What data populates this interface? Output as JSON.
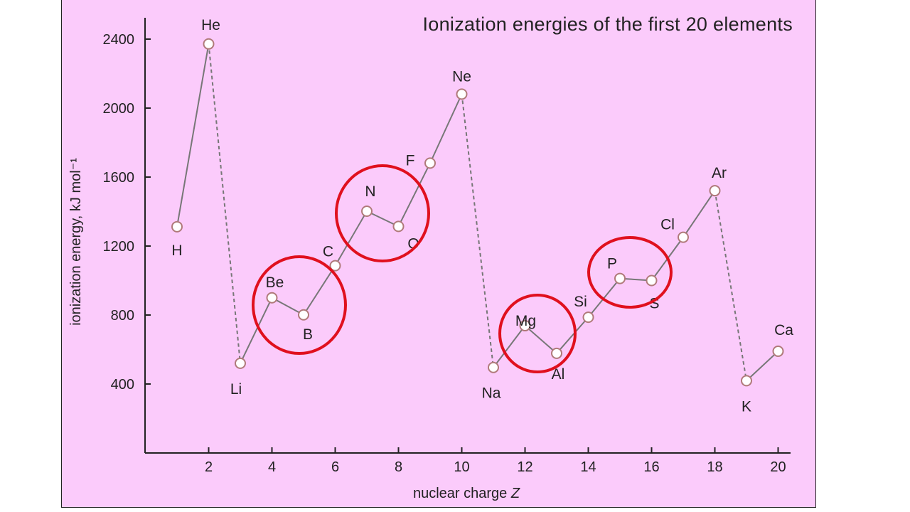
{
  "chart_data": {
    "type": "line",
    "title": "Ionization energies of the first 20 elements",
    "xlabel": "nuclear charge",
    "xlabel_var": "Z",
    "ylabel": "ionization energy, kJ mol⁻¹",
    "xlim": [
      0,
      20.3
    ],
    "ylim": [
      0,
      2500
    ],
    "xticks": [
      2,
      4,
      6,
      8,
      10,
      12,
      14,
      16,
      18,
      20
    ],
    "yticks": [
      400,
      800,
      1200,
      1600,
      2000,
      2400
    ],
    "grid": false,
    "series": [
      {
        "x": [
          1,
          2,
          3,
          4,
          5,
          6,
          7,
          8,
          9,
          10,
          11,
          12,
          13,
          14,
          15,
          16,
          17,
          18,
          19,
          20
        ],
        "labels": [
          "H",
          "He",
          "Li",
          "Be",
          "B",
          "C",
          "N",
          "O",
          "F",
          "Ne",
          "Na",
          "Mg",
          "Al",
          "Si",
          "P",
          "S",
          "Cl",
          "Ar",
          "K",
          "Ca"
        ],
        "values": [
          1312,
          2372,
          520,
          900,
          801,
          1086,
          1402,
          1314,
          1681,
          2081,
          496,
          738,
          578,
          787,
          1012,
          1000,
          1251,
          1521,
          419,
          590
        ],
        "dashed_after": [
          2,
          10,
          18
        ]
      }
    ],
    "annotations": {
      "circles": [
        {
          "around": [
            "Be",
            "B"
          ],
          "color": "#e0101e"
        },
        {
          "around": [
            "N",
            "O"
          ],
          "color": "#e0101e"
        },
        {
          "around": [
            "Mg",
            "Al"
          ],
          "color": "#e0101e"
        },
        {
          "around": [
            "P",
            "S"
          ],
          "color": "#e0101e"
        }
      ]
    }
  },
  "colors": {
    "background": "#fbcbfb",
    "line": "#777777",
    "marker_fill": "#ffffff",
    "marker_stroke": "#b07a7a",
    "circle": "#e0101e"
  }
}
